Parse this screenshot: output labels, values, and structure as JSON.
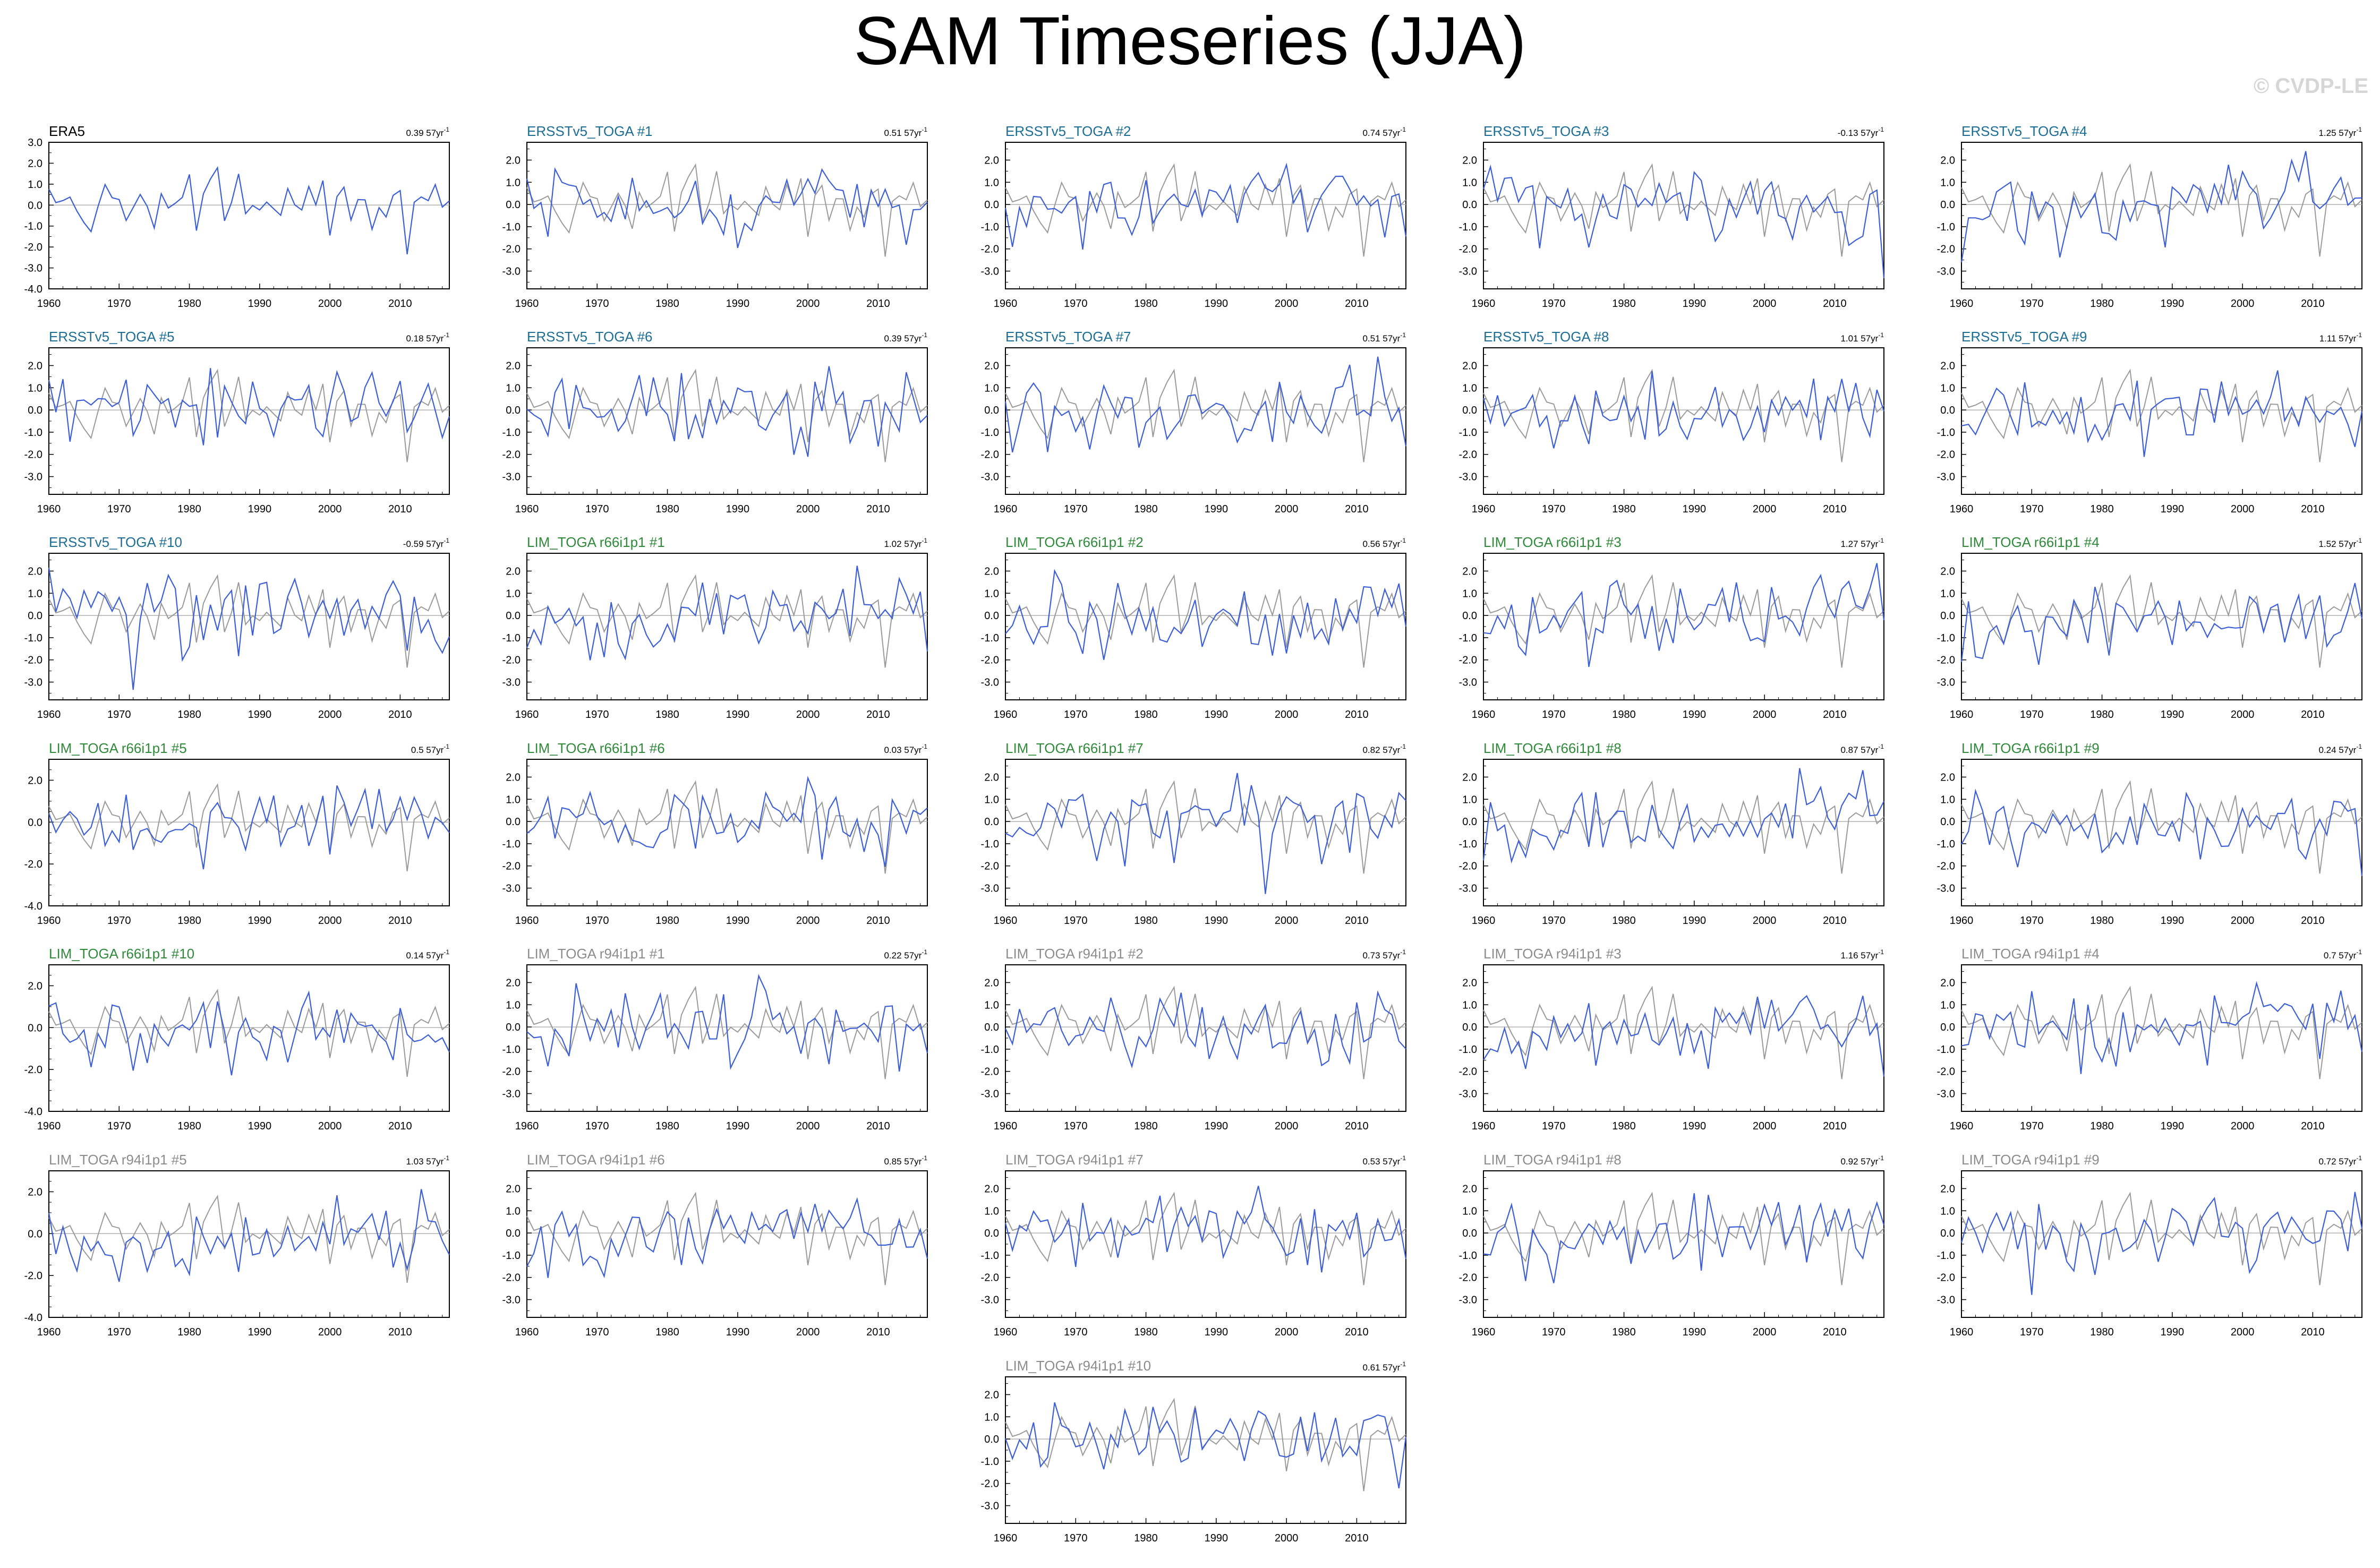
{
  "title": "SAM Timeseries (JJA)",
  "watermark": "© CVDP-LE",
  "colors": {
    "obs": "#000000",
    "ersst": "#1c6e96",
    "lim66": "#2f8a3a",
    "lim94": "#8c8c8c",
    "series": "#3d5fd6",
    "reference": "#9a9a9a",
    "zero": "#b0b0b0"
  },
  "trend_unit_suffix": "57yr",
  "trend_superscript": "-1",
  "chart_data": [
    {
      "type": "line",
      "title": "ERA5",
      "trend": "0.39",
      "group": "obs",
      "x_range": [
        1960,
        2017
      ],
      "ylim": [
        -4,
        3
      ],
      "yticks": [
        "3.0",
        "2.0",
        "1.0",
        "0.0",
        "-1.0",
        "-2.0",
        "-3.0",
        "-4.0"
      ],
      "xticks": [
        "1960",
        "1970",
        "1980",
        "1990",
        "2000",
        "2010"
      ]
    },
    {
      "type": "line",
      "title": "ERSSTv5_TOGA #1",
      "trend": "0.51",
      "group": "ersst",
      "x_range": [
        1960,
        2017
      ],
      "ylim": [
        -3.8,
        2.8
      ],
      "yticks": [
        "2.0",
        "1.0",
        "0.0",
        "-1.0",
        "-2.0",
        "-3.0"
      ],
      "xticks": [
        "1960",
        "1970",
        "1980",
        "1990",
        "2000",
        "2010"
      ]
    },
    {
      "type": "line",
      "title": "ERSSTv5_TOGA #2",
      "trend": "0.74",
      "group": "ersst",
      "x_range": [
        1960,
        2017
      ],
      "ylim": [
        -3.8,
        2.8
      ],
      "yticks": [
        "2.0",
        "1.0",
        "0.0",
        "-1.0",
        "-2.0",
        "-3.0"
      ],
      "xticks": [
        "1960",
        "1970",
        "1980",
        "1990",
        "2000",
        "2010"
      ]
    },
    {
      "type": "line",
      "title": "ERSSTv5_TOGA #3",
      "trend": "-0.13",
      "group": "ersst",
      "x_range": [
        1960,
        2017
      ],
      "ylim": [
        -3.8,
        2.8
      ],
      "yticks": [
        "2.0",
        "1.0",
        "0.0",
        "-1.0",
        "-2.0",
        "-3.0"
      ],
      "xticks": [
        "1960",
        "1970",
        "1980",
        "1990",
        "2000",
        "2010"
      ]
    },
    {
      "type": "line",
      "title": "ERSSTv5_TOGA #4",
      "trend": "1.25",
      "group": "ersst",
      "x_range": [
        1960,
        2017
      ],
      "ylim": [
        -3.8,
        2.8
      ],
      "yticks": [
        "2.0",
        "1.0",
        "0.0",
        "-1.0",
        "-2.0",
        "-3.0"
      ],
      "xticks": [
        "1960",
        "1970",
        "1980",
        "1990",
        "2000",
        "2010"
      ]
    },
    {
      "type": "line",
      "title": "ERSSTv5_TOGA #5",
      "trend": "0.18",
      "group": "ersst",
      "x_range": [
        1960,
        2017
      ],
      "ylim": [
        -3.8,
        2.8
      ],
      "yticks": [
        "2.0",
        "1.0",
        "0.0",
        "-1.0",
        "-2.0",
        "-3.0"
      ],
      "xticks": [
        "1960",
        "1970",
        "1980",
        "1990",
        "2000",
        "2010"
      ]
    },
    {
      "type": "line",
      "title": "ERSSTv5_TOGA #6",
      "trend": "0.39",
      "group": "ersst",
      "x_range": [
        1960,
        2017
      ],
      "ylim": [
        -3.8,
        2.8
      ],
      "yticks": [
        "2.0",
        "1.0",
        "0.0",
        "-1.0",
        "-2.0",
        "-3.0"
      ],
      "xticks": [
        "1960",
        "1970",
        "1980",
        "1990",
        "2000",
        "2010"
      ]
    },
    {
      "type": "line",
      "title": "ERSSTv5_TOGA #7",
      "trend": "0.51",
      "group": "ersst",
      "x_range": [
        1960,
        2017
      ],
      "ylim": [
        -3.8,
        2.8
      ],
      "yticks": [
        "2.0",
        "1.0",
        "0.0",
        "-1.0",
        "-2.0",
        "-3.0"
      ],
      "xticks": [
        "1960",
        "1970",
        "1980",
        "1990",
        "2000",
        "2010"
      ]
    },
    {
      "type": "line",
      "title": "ERSSTv5_TOGA #8",
      "trend": "1.01",
      "group": "ersst",
      "x_range": [
        1960,
        2017
      ],
      "ylim": [
        -3.8,
        2.8
      ],
      "yticks": [
        "2.0",
        "1.0",
        "0.0",
        "-1.0",
        "-2.0",
        "-3.0"
      ],
      "xticks": [
        "1960",
        "1970",
        "1980",
        "1990",
        "2000",
        "2010"
      ]
    },
    {
      "type": "line",
      "title": "ERSSTv5_TOGA #9",
      "trend": "1.11",
      "group": "ersst",
      "x_range": [
        1960,
        2017
      ],
      "ylim": [
        -3.8,
        2.8
      ],
      "yticks": [
        "2.0",
        "1.0",
        "0.0",
        "-1.0",
        "-2.0",
        "-3.0"
      ],
      "xticks": [
        "1960",
        "1970",
        "1980",
        "1990",
        "2000",
        "2010"
      ]
    },
    {
      "type": "line",
      "title": "ERSSTv5_TOGA #10",
      "trend": "-0.59",
      "group": "ersst",
      "x_range": [
        1960,
        2017
      ],
      "ylim": [
        -3.8,
        2.8
      ],
      "yticks": [
        "2.0",
        "1.0",
        "0.0",
        "-1.0",
        "-2.0",
        "-3.0"
      ],
      "xticks": [
        "1960",
        "1970",
        "1980",
        "1990",
        "2000",
        "2010"
      ]
    },
    {
      "type": "line",
      "title": "LIM_TOGA r66i1p1 #1",
      "trend": "1.02",
      "group": "lim66",
      "x_range": [
        1960,
        2017
      ],
      "ylim": [
        -3.8,
        2.8
      ],
      "yticks": [
        "2.0",
        "1.0",
        "0.0",
        "-1.0",
        "-2.0",
        "-3.0"
      ],
      "xticks": [
        "1960",
        "1970",
        "1980",
        "1990",
        "2000",
        "2010"
      ]
    },
    {
      "type": "line",
      "title": "LIM_TOGA r66i1p1 #2",
      "trend": "0.56",
      "group": "lim66",
      "x_range": [
        1960,
        2017
      ],
      "ylim": [
        -3.8,
        2.8
      ],
      "yticks": [
        "2.0",
        "1.0",
        "0.0",
        "-1.0",
        "-2.0",
        "-3.0"
      ],
      "xticks": [
        "1960",
        "1970",
        "1980",
        "1990",
        "2000",
        "2010"
      ]
    },
    {
      "type": "line",
      "title": "LIM_TOGA r66i1p1 #3",
      "trend": "1.27",
      "group": "lim66",
      "x_range": [
        1960,
        2017
      ],
      "ylim": [
        -3.8,
        2.8
      ],
      "yticks": [
        "2.0",
        "1.0",
        "0.0",
        "-1.0",
        "-2.0",
        "-3.0"
      ],
      "xticks": [
        "1960",
        "1970",
        "1980",
        "1990",
        "2000",
        "2010"
      ]
    },
    {
      "type": "line",
      "title": "LIM_TOGA r66i1p1 #4",
      "trend": "1.52",
      "group": "lim66",
      "x_range": [
        1960,
        2017
      ],
      "ylim": [
        -3.8,
        2.8
      ],
      "yticks": [
        "2.0",
        "1.0",
        "0.0",
        "-1.0",
        "-2.0",
        "-3.0"
      ],
      "xticks": [
        "1960",
        "1970",
        "1980",
        "1990",
        "2000",
        "2010"
      ]
    },
    {
      "type": "line",
      "title": "LIM_TOGA r66i1p1 #5",
      "trend": "0.5",
      "group": "lim66",
      "x_range": [
        1960,
        2017
      ],
      "ylim": [
        -4,
        3
      ],
      "yticks": [
        "2.0",
        "0.0",
        "-2.0",
        "-4.0"
      ],
      "xticks": [
        "1960",
        "1970",
        "1980",
        "1990",
        "2000",
        "2010"
      ]
    },
    {
      "type": "line",
      "title": "LIM_TOGA r66i1p1 #6",
      "trend": "0.03",
      "group": "lim66",
      "x_range": [
        1960,
        2017
      ],
      "ylim": [
        -3.8,
        2.8
      ],
      "yticks": [
        "2.0",
        "1.0",
        "0.0",
        "-1.0",
        "-2.0",
        "-3.0"
      ],
      "xticks": [
        "1960",
        "1970",
        "1980",
        "1990",
        "2000",
        "2010"
      ]
    },
    {
      "type": "line",
      "title": "LIM_TOGA r66i1p1 #7",
      "trend": "0.82",
      "group": "lim66",
      "x_range": [
        1960,
        2017
      ],
      "ylim": [
        -3.8,
        2.8
      ],
      "yticks": [
        "2.0",
        "1.0",
        "0.0",
        "-1.0",
        "-2.0",
        "-3.0"
      ],
      "xticks": [
        "1960",
        "1970",
        "1980",
        "1990",
        "2000",
        "2010"
      ]
    },
    {
      "type": "line",
      "title": "LIM_TOGA r66i1p1 #8",
      "trend": "0.87",
      "group": "lim66",
      "x_range": [
        1960,
        2017
      ],
      "ylim": [
        -3.8,
        2.8
      ],
      "yticks": [
        "2.0",
        "1.0",
        "0.0",
        "-1.0",
        "-2.0",
        "-3.0"
      ],
      "xticks": [
        "1960",
        "1970",
        "1980",
        "1990",
        "2000",
        "2010"
      ]
    },
    {
      "type": "line",
      "title": "LIM_TOGA r66i1p1 #9",
      "trend": "0.24",
      "group": "lim66",
      "x_range": [
        1960,
        2017
      ],
      "ylim": [
        -3.8,
        2.8
      ],
      "yticks": [
        "2.0",
        "1.0",
        "0.0",
        "-1.0",
        "-2.0",
        "-3.0"
      ],
      "xticks": [
        "1960",
        "1970",
        "1980",
        "1990",
        "2000",
        "2010"
      ]
    },
    {
      "type": "line",
      "title": "LIM_TOGA r66i1p1 #10",
      "trend": "0.14",
      "group": "lim66",
      "x_range": [
        1960,
        2017
      ],
      "ylim": [
        -4,
        3
      ],
      "yticks": [
        "2.0",
        "0.0",
        "-2.0",
        "-4.0"
      ],
      "xticks": [
        "1960",
        "1970",
        "1980",
        "1990",
        "2000",
        "2010"
      ]
    },
    {
      "type": "line",
      "title": "LIM_TOGA r94i1p1 #1",
      "trend": "0.22",
      "group": "lim94",
      "x_range": [
        1960,
        2017
      ],
      "ylim": [
        -3.8,
        2.8
      ],
      "yticks": [
        "2.0",
        "1.0",
        "0.0",
        "-1.0",
        "-2.0",
        "-3.0"
      ],
      "xticks": [
        "1960",
        "1970",
        "1980",
        "1990",
        "2000",
        "2010"
      ]
    },
    {
      "type": "line",
      "title": "LIM_TOGA r94i1p1 #2",
      "trend": "0.73",
      "group": "lim94",
      "x_range": [
        1960,
        2017
      ],
      "ylim": [
        -3.8,
        2.8
      ],
      "yticks": [
        "2.0",
        "1.0",
        "0.0",
        "-1.0",
        "-2.0",
        "-3.0"
      ],
      "xticks": [
        "1960",
        "1970",
        "1980",
        "1990",
        "2000",
        "2010"
      ]
    },
    {
      "type": "line",
      "title": "LIM_TOGA r94i1p1 #3",
      "trend": "1.16",
      "group": "lim94",
      "x_range": [
        1960,
        2017
      ],
      "ylim": [
        -3.8,
        2.8
      ],
      "yticks": [
        "2.0",
        "1.0",
        "0.0",
        "-1.0",
        "-2.0",
        "-3.0"
      ],
      "xticks": [
        "1960",
        "1970",
        "1980",
        "1990",
        "2000",
        "2010"
      ]
    },
    {
      "type": "line",
      "title": "LIM_TOGA r94i1p1 #4",
      "trend": "0.7",
      "group": "lim94",
      "x_range": [
        1960,
        2017
      ],
      "ylim": [
        -3.8,
        2.8
      ],
      "yticks": [
        "2.0",
        "1.0",
        "0.0",
        "-1.0",
        "-2.0",
        "-3.0"
      ],
      "xticks": [
        "1960",
        "1970",
        "1980",
        "1990",
        "2000",
        "2010"
      ]
    },
    {
      "type": "line",
      "title": "LIM_TOGA r94i1p1 #5",
      "trend": "1.03",
      "group": "lim94",
      "x_range": [
        1960,
        2017
      ],
      "ylim": [
        -4,
        3
      ],
      "yticks": [
        "2.0",
        "0.0",
        "-2.0",
        "-4.0"
      ],
      "xticks": [
        "1960",
        "1970",
        "1980",
        "1990",
        "2000",
        "2010"
      ]
    },
    {
      "type": "line",
      "title": "LIM_TOGA r94i1p1 #6",
      "trend": "0.85",
      "group": "lim94",
      "x_range": [
        1960,
        2017
      ],
      "ylim": [
        -3.8,
        2.8
      ],
      "yticks": [
        "2.0",
        "1.0",
        "0.0",
        "-1.0",
        "-2.0",
        "-3.0"
      ],
      "xticks": [
        "1960",
        "1970",
        "1980",
        "1990",
        "2000",
        "2010"
      ]
    },
    {
      "type": "line",
      "title": "LIM_TOGA r94i1p1 #7",
      "trend": "0.53",
      "group": "lim94",
      "x_range": [
        1960,
        2017
      ],
      "ylim": [
        -3.8,
        2.8
      ],
      "yticks": [
        "2.0",
        "1.0",
        "0.0",
        "-1.0",
        "-2.0",
        "-3.0"
      ],
      "xticks": [
        "1960",
        "1970",
        "1980",
        "1990",
        "2000",
        "2010"
      ]
    },
    {
      "type": "line",
      "title": "LIM_TOGA r94i1p1 #8",
      "trend": "0.92",
      "group": "lim94",
      "x_range": [
        1960,
        2017
      ],
      "ylim": [
        -3.8,
        2.8
      ],
      "yticks": [
        "2.0",
        "1.0",
        "0.0",
        "-1.0",
        "-2.0",
        "-3.0"
      ],
      "xticks": [
        "1960",
        "1970",
        "1980",
        "1990",
        "2000",
        "2010"
      ]
    },
    {
      "type": "line",
      "title": "LIM_TOGA r94i1p1 #9",
      "trend": "0.72",
      "group": "lim94",
      "x_range": [
        1960,
        2017
      ],
      "ylim": [
        -3.8,
        2.8
      ],
      "yticks": [
        "2.0",
        "1.0",
        "0.0",
        "-1.0",
        "-2.0",
        "-3.0"
      ],
      "xticks": [
        "1960",
        "1970",
        "1980",
        "1990",
        "2000",
        "2010"
      ]
    },
    {
      "type": "line",
      "title": "LIM_TOGA r94i1p1 #10",
      "trend": "0.61",
      "group": "lim94",
      "x_range": [
        1960,
        2017
      ],
      "ylim": [
        -3.8,
        2.8
      ],
      "yticks": [
        "2.0",
        "1.0",
        "0.0",
        "-1.0",
        "-2.0",
        "-3.0"
      ],
      "xticks": [
        "1960",
        "1970",
        "1980",
        "1990",
        "2000",
        "2010"
      ]
    }
  ]
}
